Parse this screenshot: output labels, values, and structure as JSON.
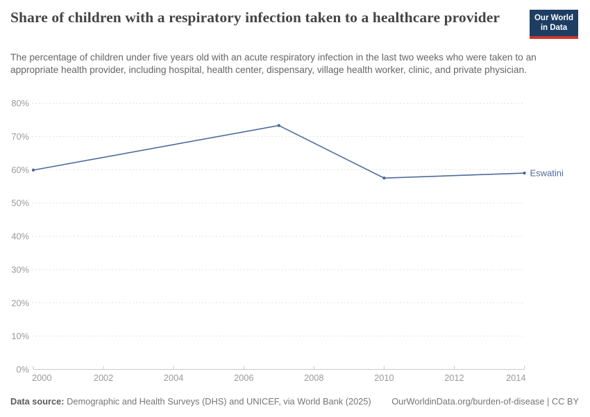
{
  "header": {
    "title": "Share of children with a respiratory infection taken to a healthcare provider",
    "subtitle": "The percentage of children under five years old with an acute respiratory infection in the last two weeks who were taken to an appropriate health provider, including hospital, health center, dispensary, village health worker, clinic, and private physician.",
    "logo": {
      "line1": "Our World",
      "line2": "in Data"
    }
  },
  "chart_data": {
    "type": "line",
    "title": "Share of children with a respiratory infection taken to a healthcare provider",
    "entity": "Eswatini",
    "series": [
      {
        "name": "Eswatini",
        "color": "#4C6A9C",
        "points": [
          {
            "x": 2000,
            "y": 59.9
          },
          {
            "x": 2007,
            "y": 73.3
          },
          {
            "x": 2010,
            "y": 57.5
          },
          {
            "x": 2014,
            "y": 59.0
          }
        ]
      }
    ],
    "xlim": [
      2000,
      2014
    ],
    "ylim": [
      0,
      80
    ],
    "xticks": [
      2000,
      2002,
      2004,
      2006,
      2008,
      2010,
      2012,
      2014
    ],
    "yticks": [
      0,
      10,
      20,
      30,
      40,
      50,
      60,
      70,
      80
    ],
    "ytick_suffix": "%",
    "grid": "horizontal-dashed",
    "legend_position": "line-end-label"
  },
  "footer": {
    "source_label": "Data source:",
    "source_text": " Demographic and Health Surveys (DHS) and UNICEF, via World Bank (2025)",
    "credit": "OurWorldinData.org/burden-of-disease | CC BY"
  },
  "colors": {
    "line": "#4C6A9C",
    "logo_bg": "#1d3d63",
    "logo_accent": "#d0342c",
    "axis_text": "#9a9a9a",
    "gridline": "#e2e2e2",
    "axis_line": "#c9c9c9"
  }
}
